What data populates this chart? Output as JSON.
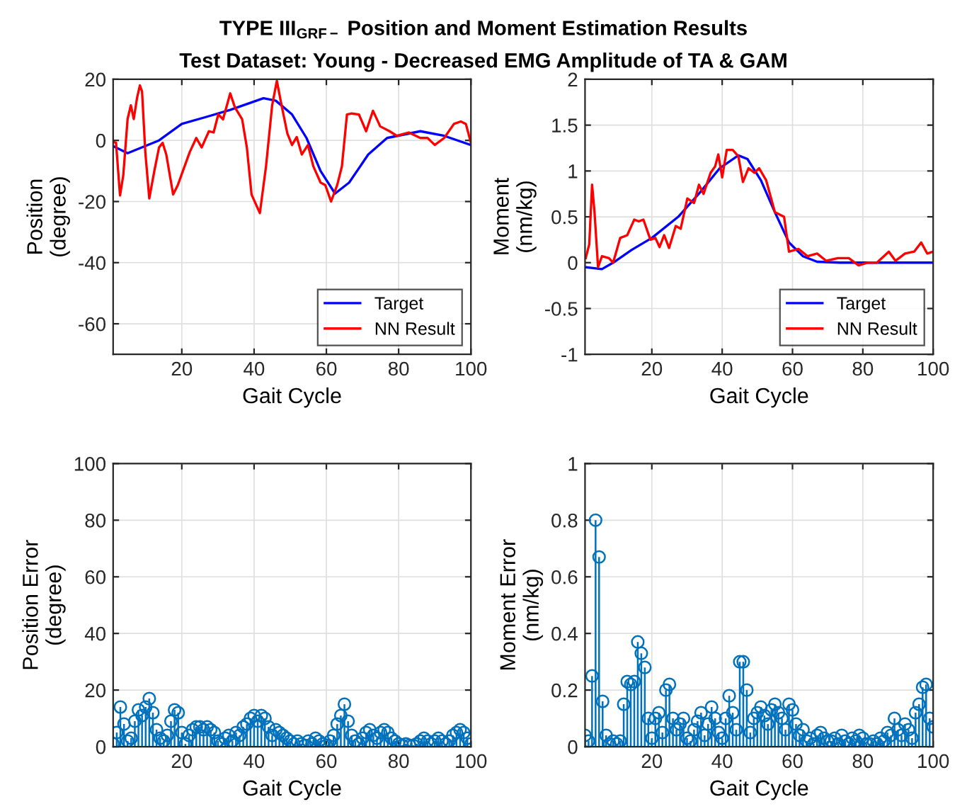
{
  "chart_data": [
    {
      "type": "line",
      "title": "TYPE III$_{GRF−}$ Position and Moment Estimation Results",
      "subtitle": "Test Dataset: Young - Decreased EMG Amplitude of TA & GAM",
      "xlabel": "Gait Cycle",
      "ylabel": "Position\n(degree)",
      "xlim": [
        1,
        100
      ],
      "xticks": [
        20,
        40,
        60,
        80,
        100
      ],
      "ylim": [
        -70,
        20
      ],
      "yticks": [
        -60,
        -40,
        -20,
        0,
        20
      ],
      "grid": true,
      "legend": "bottom right",
      "series": [
        {
          "name": "Target",
          "color": "#0000ff",
          "x": [
            1.2,
            5,
            13.7,
            20,
            26.8,
            33.4,
            42.6,
            46,
            50.5,
            54.5,
            58.4,
            62.4,
            66.3,
            71.6,
            76.8,
            86,
            92.6,
            100
          ],
          "values": [
            -2,
            -4.2,
            0,
            5.4,
            7.7,
            10,
            13.8,
            13,
            8.5,
            0.8,
            -10,
            -17.4,
            -13.8,
            -4.6,
            0.8,
            3,
            1.5,
            -1.5
          ]
        },
        {
          "name": "NN Result",
          "color": "#ff0000",
          "x": [
            1.2,
            1.8,
            2.9,
            3.8,
            5,
            5.9,
            6.7,
            7.6,
            8.4,
            9,
            9.9,
            11,
            12.4,
            13.7,
            14.7,
            15.7,
            17.6,
            18.9,
            20.3,
            22.2,
            24,
            25.5,
            27.5,
            28.8,
            30.1,
            31.4,
            33.4,
            34.7,
            36.7,
            38,
            39.3,
            41.6,
            43.3,
            45,
            46.3,
            47.6,
            49.2,
            50.5,
            51.8,
            53.2,
            54.9,
            56.4,
            58.4,
            59.7,
            61.3,
            63,
            64.3,
            65.7,
            67,
            69,
            71,
            72.9,
            74.9,
            77.5,
            79.5,
            82.8,
            86,
            88,
            90,
            92.6,
            95.3,
            97.2,
            98.6,
            100
          ],
          "values": [
            -0.5,
            -0.8,
            -18,
            -11.5,
            7,
            11.5,
            7,
            13.8,
            18,
            16,
            -3.8,
            -19,
            -10,
            -2.3,
            -0.8,
            -4.6,
            -17.7,
            -14.6,
            -10,
            -3.8,
            0.8,
            -2.3,
            3,
            2.6,
            8.5,
            6.9,
            15.4,
            10.8,
            6.9,
            -2.3,
            -17.7,
            -23.8,
            -8.5,
            11.5,
            19.5,
            11.5,
            2.3,
            -1.5,
            1.1,
            -4.6,
            -1.5,
            -8.5,
            -13.8,
            -14.6,
            -20,
            -14.6,
            -8.5,
            8.5,
            8.8,
            8.5,
            3,
            9.7,
            4.6,
            3,
            1.5,
            2.6,
            0.8,
            0.8,
            -1.5,
            0.8,
            5.4,
            6.2,
            5.4,
            -0.8
          ]
        }
      ]
    },
    {
      "type": "line",
      "xlabel": "Gait Cycle",
      "ylabel": "Moment\n(nm/kg)",
      "xlim": [
        1,
        100
      ],
      "xticks": [
        20,
        40,
        60,
        80,
        100
      ],
      "ylim": [
        -1,
        2
      ],
      "yticks": [
        -1,
        -0.5,
        0,
        0.5,
        1,
        1.5,
        2
      ],
      "grid": true,
      "legend": "bottom right",
      "series": [
        {
          "name": "Target",
          "color": "#0000ff",
          "x": [
            1.2,
            5.8,
            9,
            14.3,
            20,
            27.5,
            34,
            39.3,
            44.6,
            47.2,
            51,
            55,
            59,
            63,
            67,
            73.6,
            100
          ],
          "values": [
            -0.05,
            -0.07,
            0,
            0.14,
            0.27,
            0.5,
            0.78,
            1.03,
            1.17,
            1.13,
            0.9,
            0.55,
            0.22,
            0.07,
            0.01,
            0,
            0
          ]
        },
        {
          "name": "NN Result",
          "color": "#ff0000",
          "x": [
            1.2,
            2.2,
            3,
            3.7,
            4.7,
            5.8,
            7.8,
            9,
            11,
            13,
            15,
            16.3,
            17.6,
            19.6,
            21,
            22.2,
            23.5,
            24.9,
            26.8,
            28.2,
            30.1,
            32,
            33.4,
            34.7,
            36.7,
            38,
            38.9,
            40,
            41.3,
            43,
            44.6,
            45.9,
            47.5,
            49.2,
            50.5,
            52.5,
            55,
            57.6,
            59,
            61.7,
            64.3,
            67,
            69.6,
            72.9,
            76,
            78.8,
            81.4,
            84,
            87.4,
            89.3,
            92,
            94.6,
            96.6,
            98.3,
            100
          ],
          "values": [
            0.05,
            0.2,
            0.85,
            0.55,
            -0.05,
            0.07,
            0.05,
            0,
            0.27,
            0.3,
            0.47,
            0.45,
            0.47,
            0.25,
            0.27,
            0.17,
            0.3,
            0.16,
            0.4,
            0.37,
            0.7,
            0.65,
            0.85,
            0.75,
            0.98,
            1.05,
            1.18,
            0.93,
            1.23,
            1.23,
            1.16,
            0.88,
            1.03,
            0.98,
            1.03,
            0.9,
            0.55,
            0.5,
            0.12,
            0.15,
            0.07,
            0.1,
            0.02,
            0.05,
            0.05,
            -0.03,
            0,
            0,
            0.12,
            0.02,
            0.1,
            0.12,
            0.22,
            0.1,
            0.12
          ]
        }
      ]
    },
    {
      "type": "lollipop",
      "xlabel": "Gait Cycle",
      "ylabel": "Position Error\n(degree)",
      "xlim": [
        1,
        100
      ],
      "xticks": [
        20,
        40,
        60,
        80,
        100
      ],
      "ylim": [
        0,
        100
      ],
      "yticks": [
        0,
        20,
        40,
        60,
        80,
        100
      ],
      "grid": true,
      "marker": "circle",
      "series": [
        {
          "color": "#0072bd",
          "x": [
            1,
            2,
            3,
            4,
            5,
            6,
            7,
            8,
            9,
            10,
            11,
            12,
            13,
            14,
            15,
            16,
            17,
            18,
            19,
            20,
            21,
            22,
            23,
            24,
            25,
            26,
            27,
            28,
            29,
            30,
            31,
            32,
            33,
            34,
            35,
            36,
            37,
            38,
            39,
            40,
            41,
            42,
            43,
            44,
            45,
            46,
            47,
            48,
            49,
            50,
            51,
            52,
            53,
            54,
            55,
            56,
            57,
            58,
            59,
            60,
            61,
            62,
            63,
            64,
            65,
            66,
            67,
            68,
            69,
            70,
            71,
            72,
            73,
            74,
            75,
            76,
            77,
            78,
            79,
            80,
            81,
            82,
            83,
            84,
            85,
            86,
            87,
            88,
            89,
            90,
            91,
            92,
            93,
            94,
            95,
            96,
            97,
            98,
            99,
            100
          ],
          "values": [
            1,
            5,
            14,
            8,
            2,
            3,
            9,
            13,
            11,
            14,
            17,
            12,
            6,
            3,
            2,
            4,
            9,
            13,
            12,
            5,
            1,
            4,
            6,
            7,
            7,
            6,
            7,
            6,
            5,
            2,
            1,
            3,
            4,
            2,
            5,
            4,
            7,
            8,
            10,
            11,
            9,
            11,
            10,
            7,
            4,
            6,
            5,
            4,
            3,
            2,
            1,
            2,
            1,
            0.5,
            2,
            1,
            3,
            2,
            1,
            0.5,
            2,
            4,
            8,
            11,
            15,
            9,
            4,
            2,
            1,
            3,
            5,
            6,
            4,
            3,
            5,
            6,
            5,
            3,
            2,
            1,
            0.5,
            1,
            0.5,
            0.5,
            1,
            2,
            3,
            2,
            1,
            2,
            3,
            2,
            1,
            2,
            4,
            5,
            6,
            5,
            3,
            1
          ]
        }
      ]
    },
    {
      "type": "lollipop",
      "xlabel": "Gait Cycle",
      "ylabel": "Moment Error\n(nm/kg)",
      "xlim": [
        1,
        100
      ],
      "xticks": [
        20,
        40,
        60,
        80,
        100
      ],
      "ylim": [
        0,
        1
      ],
      "yticks": [
        0,
        0.2,
        0.4,
        0.6,
        0.8,
        1
      ],
      "grid": true,
      "marker": "circle",
      "series": [
        {
          "color": "#0072bd",
          "x": [
            1,
            2,
            3,
            4,
            5,
            6,
            7,
            8,
            9,
            10,
            11,
            12,
            13,
            14,
            15,
            16,
            17,
            18,
            19,
            20,
            21,
            22,
            23,
            24,
            25,
            26,
            27,
            28,
            29,
            30,
            31,
            32,
            33,
            34,
            35,
            36,
            37,
            38,
            39,
            40,
            41,
            42,
            43,
            44,
            45,
            46,
            47,
            48,
            49,
            50,
            51,
            52,
            53,
            54,
            55,
            56,
            57,
            58,
            59,
            60,
            61,
            62,
            63,
            64,
            65,
            66,
            67,
            68,
            69,
            70,
            71,
            72,
            73,
            74,
            75,
            76,
            77,
            78,
            79,
            80,
            81,
            82,
            83,
            84,
            85,
            86,
            87,
            88,
            89,
            90,
            91,
            92,
            93,
            94,
            95,
            96,
            97,
            98,
            99,
            100
          ],
          "values": [
            0.04,
            0.02,
            0.25,
            0.8,
            0.67,
            0.16,
            0.04,
            0.01,
            0.02,
            0.01,
            0.02,
            0.15,
            0.23,
            0.22,
            0.23,
            0.37,
            0.33,
            0.28,
            0.1,
            0.03,
            0.1,
            0.12,
            0.05,
            0.2,
            0.22,
            0.1,
            0.06,
            0.08,
            0.1,
            0.03,
            0.02,
            0.06,
            0.09,
            0.12,
            0.04,
            0.08,
            0.14,
            0.1,
            0.05,
            0.03,
            0.1,
            0.18,
            0.12,
            0.06,
            0.3,
            0.3,
            0.2,
            0.05,
            0.1,
            0.12,
            0.14,
            0.11,
            0.08,
            0.13,
            0.15,
            0.12,
            0.1,
            0.06,
            0.15,
            0.13,
            0.08,
            0.04,
            0.06,
            0.02,
            0.03,
            0.01,
            0.04,
            0.05,
            0.03,
            0.02,
            0.02,
            0.03,
            0.01,
            0.04,
            0.02,
            0.01,
            0.03,
            0.02,
            0.04,
            0.03,
            0.01,
            0.01,
            0.02,
            0.01,
            0.03,
            0.02,
            0.05,
            0.04,
            0.1,
            0.06,
            0.04,
            0.08,
            0.06,
            0.03,
            0.12,
            0.15,
            0.21,
            0.22,
            0.1,
            0.07
          ]
        }
      ]
    }
  ]
}
